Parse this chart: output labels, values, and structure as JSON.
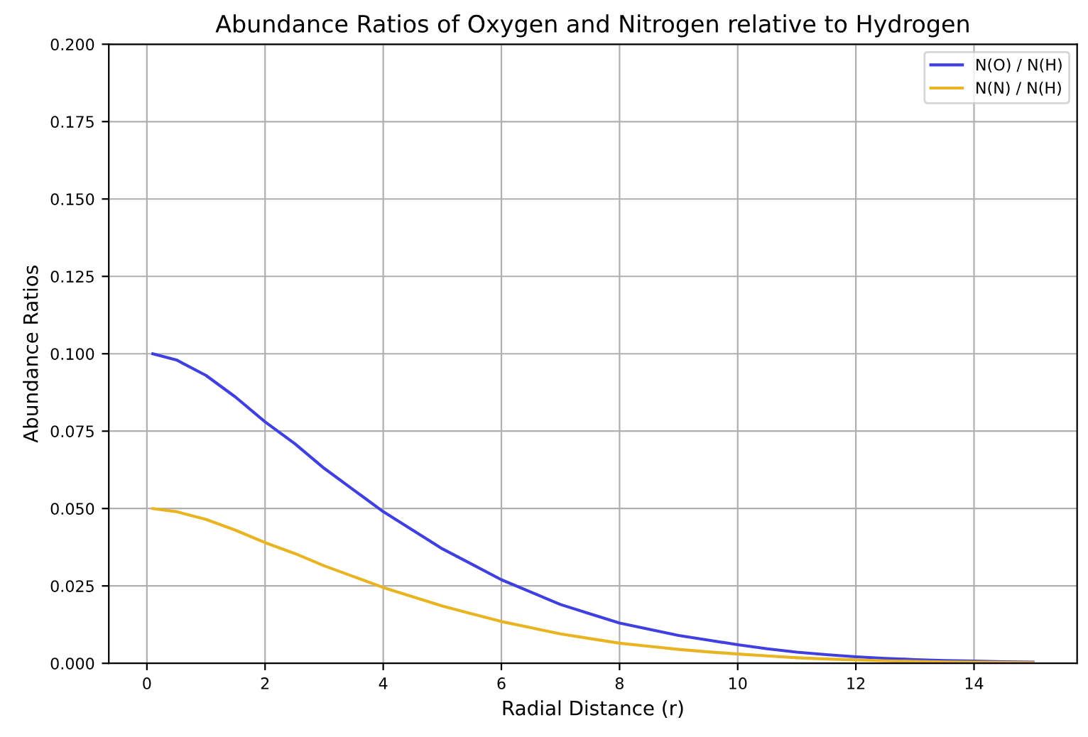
{
  "chart_data": {
    "type": "line",
    "title": "Abundance Ratios of Oxygen and Nitrogen relative to Hydrogen",
    "xlabel": "Radial Distance (r)",
    "ylabel": "Abundance Ratios",
    "x": [
      0.1,
      0.5,
      1,
      1.5,
      2,
      2.5,
      3,
      3.5,
      4,
      4.5,
      5,
      5.5,
      6,
      6.5,
      7,
      7.5,
      8,
      8.5,
      9,
      9.5,
      10,
      10.5,
      11,
      11.5,
      12,
      12.5,
      13,
      13.5,
      14,
      14.5,
      15
    ],
    "series": [
      {
        "name": "N(O) / N(H)",
        "color": "#4040e0",
        "values": [
          0.1,
          0.098,
          0.093,
          0.086,
          0.078,
          0.071,
          0.063,
          0.056,
          0.049,
          0.043,
          0.037,
          0.032,
          0.027,
          0.023,
          0.019,
          0.016,
          0.013,
          0.011,
          0.009,
          0.0075,
          0.006,
          0.0047,
          0.0036,
          0.0028,
          0.0021,
          0.0016,
          0.0012,
          0.0009,
          0.0007,
          0.0005,
          0.0004
        ]
      },
      {
        "name": "N(N) / N(H)",
        "color": "#e8b422",
        "values": [
          0.05,
          0.049,
          0.0465,
          0.043,
          0.039,
          0.0355,
          0.0315,
          0.028,
          0.0245,
          0.0215,
          0.0185,
          0.016,
          0.0135,
          0.0115,
          0.0095,
          0.008,
          0.0065,
          0.0055,
          0.0045,
          0.0037,
          0.003,
          0.0024,
          0.0018,
          0.0014,
          0.0011,
          0.0008,
          0.0006,
          0.00045,
          0.00035,
          0.00025,
          0.0002
        ]
      }
    ],
    "xlim": [
      -0.645,
      15.745
    ],
    "xticks": [
      0,
      2,
      4,
      6,
      8,
      10,
      12,
      14
    ],
    "ylim": [
      0,
      0.2
    ],
    "yticks": [
      {
        "value": 0,
        "label": "0.000"
      },
      {
        "value": 0.025,
        "label": "0.025"
      },
      {
        "value": 0.05,
        "label": "0.050"
      },
      {
        "value": 0.075,
        "label": "0.075"
      },
      {
        "value": 0.1,
        "label": "0.100"
      },
      {
        "value": 0.125,
        "label": "0.125"
      },
      {
        "value": 0.15,
        "label": "0.150"
      },
      {
        "value": 0.175,
        "label": "0.175"
      },
      {
        "value": 0.2,
        "label": "0.200"
      }
    ],
    "grid": true,
    "legend": "top right",
    "line_style": "solid",
    "marker": "none"
  }
}
